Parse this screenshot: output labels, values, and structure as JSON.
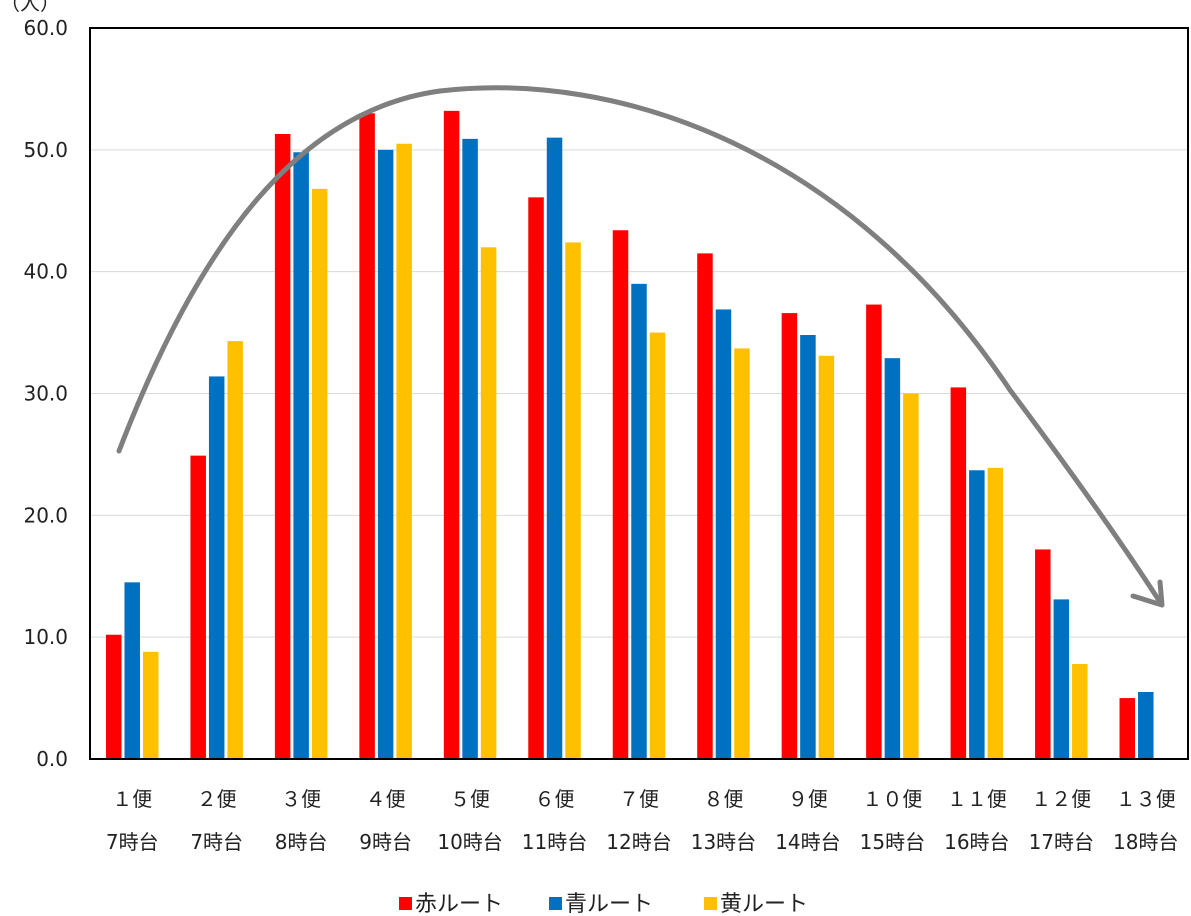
{
  "chart_data": {
    "type": "bar",
    "title": "",
    "ylabel": "（人）",
    "xlabel": "",
    "ylim": [
      0,
      60
    ],
    "yticks": [
      "0.0",
      "10.0",
      "20.0",
      "30.0",
      "40.0",
      "50.0",
      "60.0"
    ],
    "grid": true,
    "legend_position": "bottom",
    "categories": [
      {
        "line1": "１便",
        "line2": "7時台"
      },
      {
        "line1": "２便",
        "line2": "7時台"
      },
      {
        "line1": "３便",
        "line2": "8時台"
      },
      {
        "line1": "４便",
        "line2": "9時台"
      },
      {
        "line1": "５便",
        "line2": "10時台"
      },
      {
        "line1": "６便",
        "line2": "11時台"
      },
      {
        "line1": "７便",
        "line2": "12時台"
      },
      {
        "line1": "８便",
        "line2": "13時台"
      },
      {
        "line1": "９便",
        "line2": "14時台"
      },
      {
        "line1": "１０便",
        "line2": "15時台"
      },
      {
        "line1": "１１便",
        "line2": "16時台"
      },
      {
        "line1": "１２便",
        "line2": "17時台"
      },
      {
        "line1": "１３便",
        "line2": "18時台"
      }
    ],
    "series": [
      {
        "name": "赤ルート",
        "color": "#ff0000",
        "values": [
          10.2,
          24.9,
          51.3,
          53.0,
          53.2,
          46.1,
          43.4,
          41.5,
          36.6,
          37.3,
          30.5,
          17.2,
          5.0
        ]
      },
      {
        "name": "青ルート",
        "color": "#0070c0",
        "values": [
          14.5,
          31.4,
          49.8,
          50.0,
          50.9,
          51.0,
          39.0,
          36.9,
          34.8,
          32.9,
          23.7,
          13.1,
          5.5
        ]
      },
      {
        "name": "黄ルート",
        "color": "#ffc000",
        "values": [
          8.8,
          34.3,
          46.8,
          50.5,
          42.0,
          42.4,
          35.0,
          33.7,
          33.1,
          30.0,
          23.9,
          7.8,
          null
        ]
      }
    ],
    "trend_arrow": {
      "color": "#7f7f7f",
      "description": "arc"
    }
  }
}
